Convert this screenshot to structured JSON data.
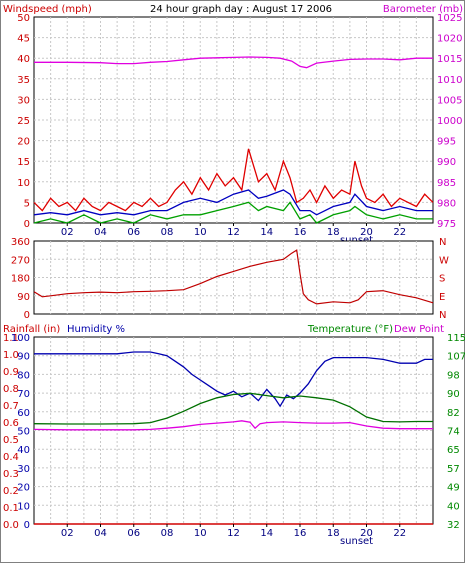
{
  "chart_data": [
    {
      "type": "line",
      "title": "24 hour graph day : August 17 2006",
      "left_axis_label": "Windspeed (mph)",
      "right_axis_label": "Barometer (mb)",
      "left_ticks": [
        "0",
        "5",
        "10",
        "15",
        "20",
        "25",
        "30",
        "35",
        "40",
        "45",
        "50"
      ],
      "right_ticks": [
        "975",
        "980",
        "985",
        "990",
        "995",
        "1000",
        "1005",
        "1010",
        "1015",
        "1020",
        "1025"
      ],
      "ylim_left": [
        0,
        50
      ],
      "ylim_right": [
        975,
        1025
      ],
      "x_ticks": [
        "02",
        "04",
        "06",
        "08",
        "10",
        "12",
        "14",
        "16",
        "18",
        "20",
        "22"
      ],
      "x_range_hours": [
        0,
        24
      ],
      "sunset_label": "sunset",
      "sunset_hour": 19.4,
      "grid": true,
      "series": [
        {
          "axis": "left",
          "color": "#e00000",
          "x": [
            0,
            0.5,
            1,
            1.5,
            2,
            2.5,
            3,
            3.5,
            4,
            4.5,
            5,
            5.5,
            6,
            6.5,
            7,
            7.5,
            8,
            8.5,
            9,
            9.5,
            10,
            10.5,
            11,
            11.5,
            12,
            12.5,
            12.9,
            13.5,
            14,
            14.5,
            15,
            15.4,
            15.8,
            16.2,
            16.6,
            17,
            17.5,
            18,
            18.5,
            19,
            19.3,
            19.7,
            20,
            20.5,
            21,
            21.5,
            22,
            22.5,
            23,
            23.5,
            24
          ],
          "y": [
            5,
            3,
            6,
            4,
            5,
            3,
            6,
            4,
            3,
            5,
            4,
            3,
            5,
            4,
            6,
            4,
            5,
            8,
            10,
            7,
            11,
            8,
            12,
            9,
            11,
            8,
            18,
            10,
            12,
            8,
            15,
            11,
            5,
            6,
            8,
            5,
            9,
            6,
            8,
            7,
            15,
            9,
            6,
            5,
            7,
            4,
            6,
            5,
            4,
            7,
            5
          ]
        },
        {
          "axis": "left",
          "color": "#0000c0",
          "x": [
            0,
            1,
            2,
            3,
            4,
            5,
            6,
            7,
            8,
            9,
            10,
            11,
            12,
            12.9,
            13.5,
            14,
            15,
            15.4,
            16,
            16.6,
            17,
            18,
            19,
            19.3,
            20,
            21,
            22,
            23,
            24
          ],
          "y": [
            2,
            2.5,
            2,
            3,
            2,
            2.5,
            2,
            3,
            3,
            5,
            6,
            5,
            7,
            8,
            6,
            6.5,
            8,
            7,
            3,
            3,
            2,
            4,
            5,
            7,
            4,
            3,
            4,
            3,
            3
          ]
        },
        {
          "axis": "left",
          "color": "#00a000",
          "x": [
            0,
            1,
            2,
            3,
            4,
            5,
            6,
            7,
            8,
            9,
            10,
            11,
            12,
            12.9,
            13.5,
            14,
            15,
            15.4,
            16,
            16.6,
            17,
            18,
            19,
            19.3,
            20,
            21,
            22,
            23,
            24
          ],
          "y": [
            0,
            1,
            0,
            2,
            0,
            1,
            0,
            2,
            1,
            2,
            2,
            3,
            4,
            5,
            3,
            4,
            3,
            5,
            1,
            2,
            0,
            2,
            3,
            4,
            2,
            1,
            2,
            1,
            1
          ]
        },
        {
          "axis": "right",
          "color": "#e000e0",
          "x": [
            0,
            2,
            4,
            5,
            6,
            7,
            8,
            9,
            10,
            11,
            12,
            13,
            14,
            14.8,
            15.5,
            16,
            16.4,
            17,
            18,
            19,
            20,
            21,
            22,
            23,
            24
          ],
          "y": [
            1014,
            1014,
            1013.9,
            1013.7,
            1013.7,
            1014,
            1014.2,
            1014.6,
            1015,
            1015.1,
            1015.2,
            1015.3,
            1015.2,
            1015,
            1014.3,
            1013,
            1012.7,
            1013.8,
            1014.3,
            1014.7,
            1014.8,
            1014.8,
            1014.6,
            1015,
            1015
          ]
        }
      ]
    },
    {
      "type": "line",
      "left_ticks": [
        "360",
        "270",
        "180",
        "90",
        "0"
      ],
      "right_ticks": [
        "N",
        "W",
        "S",
        "E",
        "N"
      ],
      "ylim": [
        0,
        360
      ],
      "x_range_hours": [
        0,
        24
      ],
      "grid": true,
      "series": [
        {
          "name": "",
          "color": "#c00000",
          "x": [
            0,
            0.5,
            1,
            2,
            3,
            4,
            5,
            6,
            7,
            8,
            9,
            10,
            11,
            12,
            13,
            14,
            15,
            15.5,
            15.8,
            16,
            16.2,
            16.5,
            17,
            18,
            19,
            19.5,
            20,
            21,
            22,
            23,
            24
          ],
          "y": [
            110,
            85,
            90,
            100,
            105,
            108,
            105,
            110,
            112,
            115,
            120,
            150,
            185,
            210,
            235,
            255,
            270,
            300,
            315,
            200,
            100,
            70,
            50,
            60,
            55,
            70,
            110,
            115,
            95,
            80,
            55
          ]
        }
      ]
    },
    {
      "type": "line",
      "left_axis_label": "Rainfall (in)",
      "left_axis_label_2": "Humidity %",
      "right_axis_label": "Temperature (°F)",
      "right_axis_label_2": "Dew Point",
      "rain_ticks": [
        "0.0",
        "0.1",
        "0.2",
        "0.3",
        "0.4",
        "0.5",
        "0.6",
        "0.7",
        "0.8",
        "0.9",
        "1.0",
        "1.1"
      ],
      "humidity_ticks": [
        "0",
        "10",
        "20",
        "30",
        "40",
        "50",
        "60",
        "70",
        "80",
        "90",
        "100"
      ],
      "temp_ticks": [
        "32",
        "40",
        "49",
        "57",
        "65",
        "74",
        "82",
        "90",
        "98",
        "107",
        "115"
      ],
      "x_ticks": [
        "02",
        "04",
        "06",
        "08",
        "10",
        "12",
        "14",
        "16",
        "18",
        "20",
        "22"
      ],
      "x_range_hours": [
        0,
        24
      ],
      "sunset_label": "sunset",
      "sunset_hour": 19.4,
      "grid": true,
      "series": [
        {
          "axis": "humidity",
          "color": "#0000b0",
          "x": [
            0,
            1,
            2,
            3,
            4,
            5,
            6,
            7,
            7.5,
            8,
            8.5,
            9,
            9.5,
            10,
            10.5,
            11,
            11.5,
            12,
            12.5,
            13,
            13.5,
            14,
            14.5,
            14.8,
            15.2,
            15.6,
            16,
            16.5,
            17,
            17.5,
            18,
            19,
            20,
            21,
            22,
            23,
            23.5,
            24
          ],
          "y": [
            91,
            91,
            91,
            91,
            91,
            91,
            92,
            92,
            91,
            90,
            87,
            84,
            80,
            77,
            74,
            71,
            69,
            71,
            68,
            70,
            66,
            72,
            67,
            63,
            69,
            67,
            70,
            75,
            82,
            87,
            89,
            89,
            89,
            88,
            86,
            86,
            88,
            88
          ]
        },
        {
          "axis": "temp",
          "color": "#007000",
          "x": [
            0,
            2,
            4,
            6,
            7,
            8,
            9,
            10,
            11,
            12,
            13,
            14,
            15,
            16,
            17,
            18,
            19,
            20,
            21,
            22,
            23,
            24
          ],
          "y": [
            76.5,
            76.4,
            76.4,
            76.5,
            77,
            79,
            82,
            85.5,
            88,
            89.5,
            90,
            89,
            88,
            88.8,
            88,
            87,
            84,
            79.5,
            77.5,
            77.3,
            77.5,
            77.5
          ]
        },
        {
          "axis": "temp",
          "color": "#e000e0",
          "x": [
            0,
            2,
            4,
            6,
            7,
            8,
            9,
            10,
            11,
            12,
            12.5,
            13,
            13.3,
            13.6,
            14,
            15,
            16,
            17,
            18,
            19,
            20,
            21,
            22,
            23,
            24
          ],
          "y": [
            74,
            73.8,
            73.8,
            73.8,
            74,
            74.5,
            75.2,
            76.2,
            76.8,
            77.3,
            77.8,
            77.2,
            74.5,
            76.5,
            77,
            77.3,
            77,
            76.8,
            76.8,
            77,
            75.5,
            74.5,
            74.3,
            74.3,
            74.3
          ]
        },
        {
          "axis": "rain",
          "color": "#d00000",
          "x": [
            0,
            24
          ],
          "y": [
            0,
            0
          ]
        }
      ]
    }
  ],
  "colors": {
    "title": "#000000",
    "wind_axis": "#cc0000",
    "baro_axis": "#cc00cc",
    "dir_axis": "#cc0000",
    "rain_axis": "#cc0000",
    "humidity_axis": "#0000aa",
    "temp_axis": "#008800",
    "dew_axis": "#cc00cc",
    "grid": "#c8c8c8"
  }
}
